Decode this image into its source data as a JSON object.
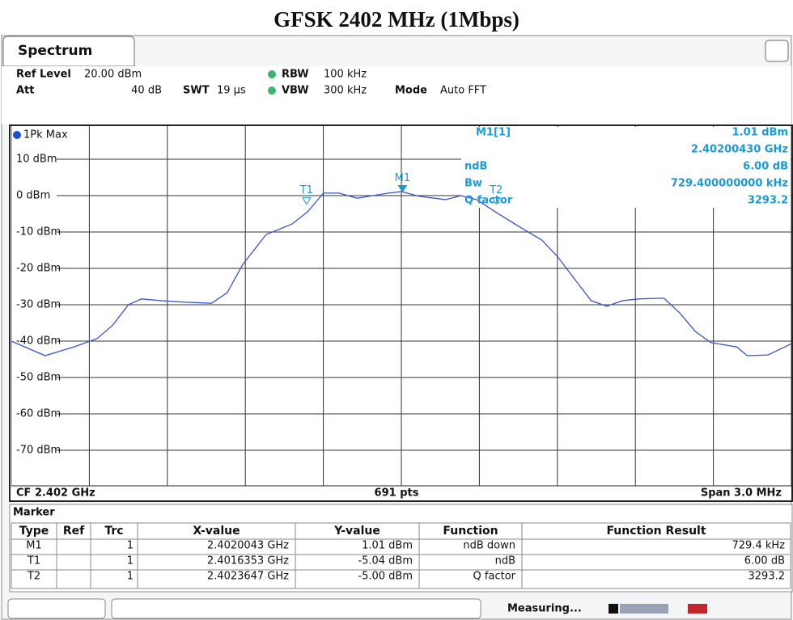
{
  "title": "GFSK 2402 MHz (1Mbps)",
  "tab": "Spectrum",
  "settings": [
    {
      "label": "Ref Level",
      "value": "20.00 dBm"
    },
    {
      "label": "Att",
      "value": "40 dB"
    },
    {
      "label": "SWT",
      "value": "19 µs"
    },
    {
      "label": "RBW",
      "value": "100 kHz"
    },
    {
      "label": "VBW",
      "value": "300 kHz"
    },
    {
      "label": "Mode",
      "value": "Auto FFT"
    }
  ],
  "chart_data": {
    "type": "line",
    "x": [
      2.4005,
      2.40063,
      2.40074,
      2.40083,
      2.40089,
      2.40095,
      2.401,
      2.40108,
      2.40117,
      2.40127,
      2.40133,
      2.40139,
      2.40148,
      2.40158,
      2.40164,
      2.4017,
      2.40176,
      2.40183,
      2.40189,
      2.40195,
      2.402,
      2.40207,
      2.40217,
      2.40223,
      2.40229,
      2.40236,
      2.40245,
      2.40254,
      2.4026,
      2.40267,
      2.40273,
      2.40279,
      2.40285,
      2.40291,
      2.40301,
      2.40307,
      2.40313,
      2.40319,
      2.40329,
      2.40333,
      2.40341,
      2.4035
    ],
    "series": [
      {
        "name": "1Pk Max",
        "color": "#3a55d0",
        "values": [
          -40,
          -44,
          -41.6,
          -39.3,
          -35.6,
          -30,
          -28.4,
          -28.9,
          -29.3,
          -29.6,
          -26.7,
          -18.9,
          -10.7,
          -7.8,
          -4.4,
          0.7,
          0.7,
          -0.7,
          0,
          0.7,
          1.1,
          -0.2,
          -1.1,
          0,
          -1.1,
          -4.4,
          -8.4,
          -12.2,
          -16.7,
          -23.3,
          -28.9,
          -30.4,
          -28.9,
          -28.4,
          -28.2,
          -32.2,
          -37.3,
          -40.4,
          -41.6,
          -44,
          -43.8,
          -40.7
        ]
      }
    ],
    "xlim": [
      2.4005,
      2.4035
    ],
    "xticks": [
      2.4005,
      2.4008,
      2.4011,
      2.4014,
      2.4017,
      2.402,
      2.4023,
      2.4026,
      2.4029,
      2.4032,
      2.4035
    ],
    "ylim": [
      -80,
      20
    ],
    "yticks": [
      {
        "value": 10,
        "label": "10 dBm"
      },
      {
        "value": 0,
        "label": "0 dBm"
      },
      {
        "value": -10,
        "label": "-10 dBm"
      },
      {
        "value": -20,
        "label": "-20 dBm"
      },
      {
        "value": -30,
        "label": "-30 dBm"
      },
      {
        "value": -40,
        "label": "-40 dBm"
      },
      {
        "value": -50,
        "label": "-50 dBm"
      },
      {
        "value": -60,
        "label": "-60 dBm"
      },
      {
        "value": -70,
        "label": "-70 dBm"
      }
    ],
    "grid": true,
    "marker_color": "#1a9bd7",
    "markers": [
      {
        "name": "M1",
        "x": 2.4020043,
        "y": 1.01
      },
      {
        "name": "T1",
        "x": 2.4016353,
        "y": -5.04
      },
      {
        "name": "T2",
        "x": 2.4023647,
        "y": -5.0
      }
    ],
    "readout": [
      {
        "label": "M1[1]",
        "values": [
          "1.01 dBm",
          "2.40200430 GHz"
        ]
      },
      {
        "label": "ndB",
        "values": [
          "6.00 dB"
        ]
      },
      {
        "label": "Bw",
        "values": [
          "729.400000000 kHz"
        ]
      },
      {
        "label": "Q factor",
        "values": [
          "3293.2"
        ]
      }
    ],
    "footer": {
      "center_frequency": "CF 2.402 GHz",
      "points": "691 pts",
      "span": "Span 3.0 MHz"
    }
  },
  "marker_table": {
    "title": "Marker",
    "columns": [
      "Type",
      "Ref",
      "Trc",
      "X-value",
      "Y-value",
      "Function",
      "Function Result"
    ],
    "rows": [
      [
        "M1",
        null,
        "1",
        "2.4020043 GHz",
        "1.01 dBm",
        "ndB down",
        "729.4 kHz"
      ],
      [
        "T1",
        null,
        "1",
        "2.4016353 GHz",
        "-5.04 dBm",
        "ndB",
        "6.00 dB"
      ],
      [
        "T2",
        null,
        "1",
        "2.4023647 GHz",
        "-5.00 dBm",
        "Q factor",
        "3293.2"
      ]
    ]
  },
  "status": "Measuring..."
}
